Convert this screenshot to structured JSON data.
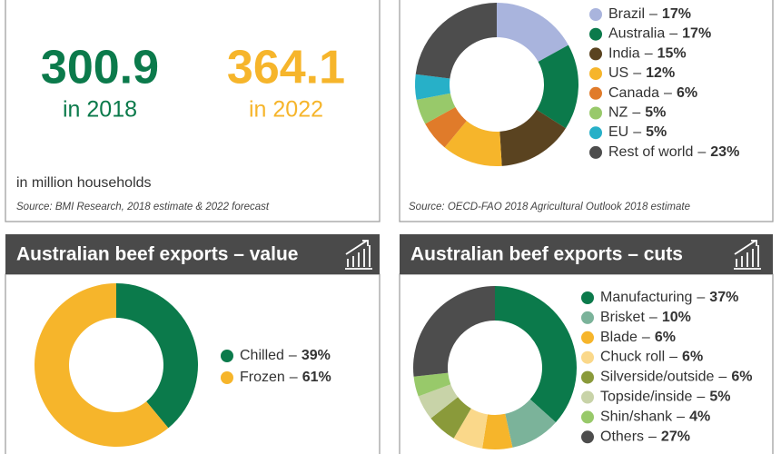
{
  "stats": {
    "items": [
      {
        "value": 300.9,
        "label": "in 2018",
        "color": "#0b7a4b"
      },
      {
        "value": 364.1,
        "label": "in 2022",
        "color": "#f6b52b"
      }
    ],
    "unit": "in million households",
    "source": "Source: BMI Research, 2018 estimate & 2022 forecast"
  },
  "separator": "–",
  "chart_data": [
    {
      "type": "donut",
      "source": "Source: OECD-FAO 2018 Agricultural Outlook 2018 estimate",
      "categories": [
        "Brazil",
        "Australia",
        "India",
        "US",
        "Canada",
        "NZ",
        "EU",
        "Rest of world"
      ],
      "values": [
        17,
        17,
        15,
        12,
        6,
        5,
        5,
        23
      ],
      "value_labels": [
        "17%",
        "17%",
        "15%",
        "12%",
        "6%",
        "5%",
        "5%",
        "23%"
      ],
      "colors": [
        "#a9b4dd",
        "#0b7a4b",
        "#5a4320",
        "#f6b52b",
        "#e07b2a",
        "#98c96a",
        "#27b0c8",
        "#4d4d4d"
      ]
    },
    {
      "type": "donut",
      "title": "Australian beef exports – value",
      "categories": [
        "Chilled",
        "Frozen"
      ],
      "values": [
        39,
        61
      ],
      "value_labels": [
        "39%",
        "61%"
      ],
      "colors": [
        "#0b7a4b",
        "#f6b52b"
      ]
    },
    {
      "type": "donut",
      "title": "Australian beef exports – cuts",
      "categories": [
        "Manufacturing",
        "Brisket",
        "Blade",
        "Chuck roll",
        "Silverside/outside",
        "Topside/inside",
        "Shin/shank",
        "Others"
      ],
      "values": [
        37,
        10,
        6,
        6,
        6,
        5,
        4,
        27
      ],
      "value_labels": [
        "37%",
        "10%",
        "6%",
        "6%",
        "6%",
        "5%",
        "4%",
        "27%"
      ],
      "colors": [
        "#0b7a4b",
        "#7bb39a",
        "#f6b52b",
        "#fad88a",
        "#8a9a3a",
        "#c8d3a8",
        "#98c96a",
        "#4d4d4d"
      ]
    }
  ]
}
